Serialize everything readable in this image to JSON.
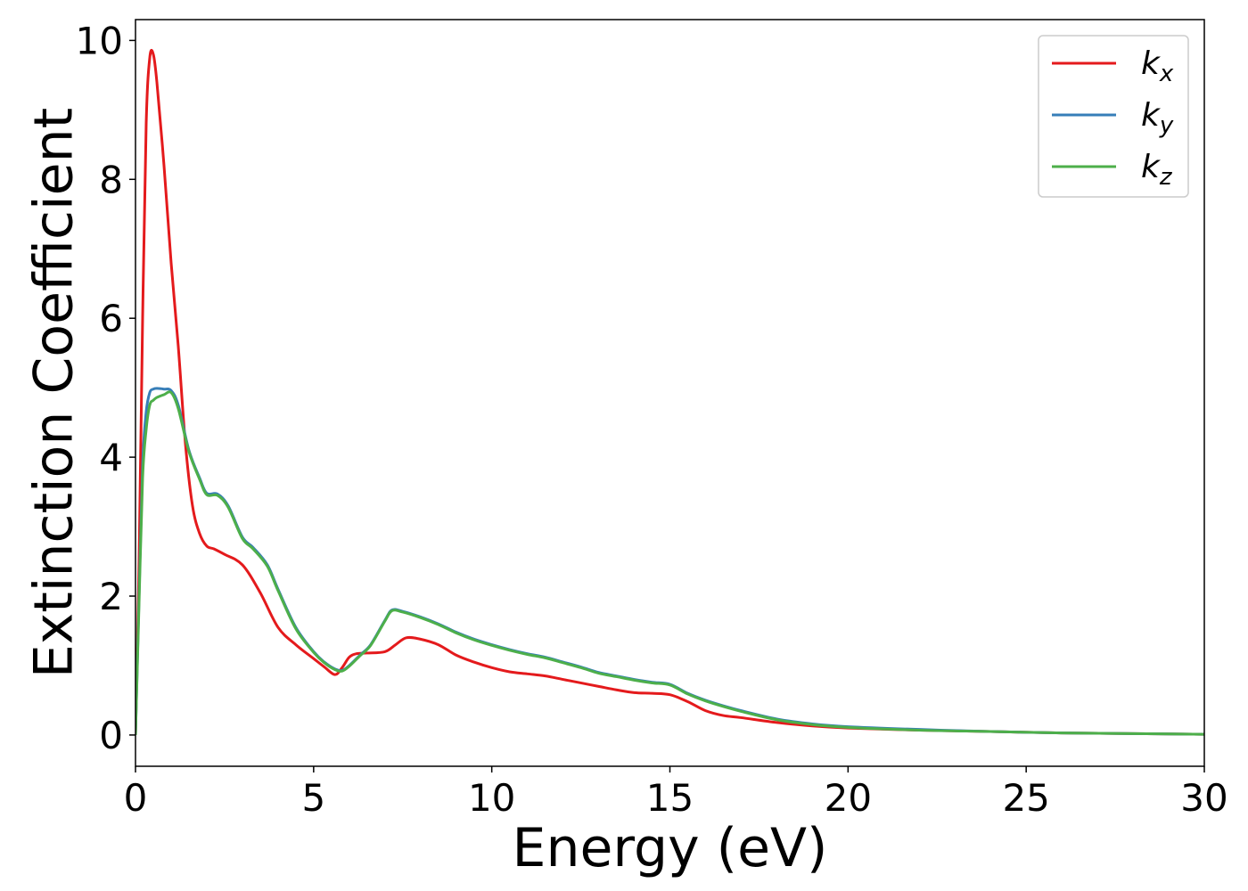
{
  "chart_data": {
    "type": "line",
    "title": "",
    "xlabel": "Energy (eV)",
    "ylabel": "Extinction Coefficient",
    "xlim": [
      0,
      30
    ],
    "ylim": [
      -0.45,
      10.3
    ],
    "xticks": [
      0,
      5,
      10,
      15,
      20,
      25,
      30
    ],
    "yticks": [
      0,
      2,
      4,
      6,
      8,
      10
    ],
    "xtick_labels": [
      "0",
      "5",
      "10",
      "15",
      "20",
      "25",
      "30"
    ],
    "ytick_labels": [
      "0",
      "2",
      "4",
      "6",
      "8",
      "10"
    ],
    "grid": false,
    "legend_position": "top-right",
    "series": [
      {
        "name": "k_x",
        "label_base": "k",
        "label_sub": "x",
        "color": "#e41a1c",
        "x": [
          0,
          0.1,
          0.2,
          0.3,
          0.4,
          0.5,
          0.6,
          0.8,
          1.0,
          1.2,
          1.4,
          1.6,
          1.8,
          2.0,
          2.2,
          2.5,
          3.0,
          3.5,
          4.0,
          4.5,
          5.0,
          5.3,
          5.6,
          5.8,
          6.0,
          6.2,
          6.5,
          7.0,
          7.3,
          7.6,
          8.0,
          8.5,
          9.0,
          9.5,
          10.0,
          10.5,
          11.0,
          11.5,
          12.0,
          12.5,
          13.0,
          13.5,
          14.0,
          14.5,
          15.0,
          15.5,
          16.0,
          16.5,
          17.0,
          18.0,
          19.0,
          20.0,
          22.0,
          24.0,
          26.0,
          28.0,
          30.0
        ],
        "y": [
          0,
          2.5,
          6.0,
          8.8,
          9.75,
          9.8,
          9.4,
          8.2,
          6.8,
          5.6,
          4.2,
          3.3,
          2.9,
          2.72,
          2.68,
          2.6,
          2.45,
          2.05,
          1.55,
          1.3,
          1.1,
          0.98,
          0.87,
          0.97,
          1.12,
          1.17,
          1.18,
          1.2,
          1.3,
          1.4,
          1.38,
          1.3,
          1.15,
          1.05,
          0.97,
          0.91,
          0.88,
          0.85,
          0.8,
          0.75,
          0.7,
          0.65,
          0.61,
          0.6,
          0.58,
          0.48,
          0.35,
          0.28,
          0.25,
          0.18,
          0.13,
          0.1,
          0.07,
          0.05,
          0.03,
          0.02,
          0.01
        ]
      },
      {
        "name": "k_y",
        "label_base": "k",
        "label_sub": "y",
        "color": "#377eb8",
        "x": [
          0,
          0.1,
          0.2,
          0.3,
          0.4,
          0.5,
          0.6,
          0.8,
          1.0,
          1.2,
          1.5,
          1.8,
          2.0,
          2.3,
          2.6,
          3.0,
          3.3,
          3.7,
          4.0,
          4.5,
          5.0,
          5.3,
          5.6,
          5.8,
          6.0,
          6.3,
          6.6,
          7.0,
          7.2,
          7.5,
          8.0,
          8.5,
          9.0,
          9.5,
          10.0,
          10.5,
          11.0,
          11.5,
          12.0,
          12.5,
          13.0,
          13.5,
          14.0,
          14.5,
          15.0,
          15.5,
          16.0,
          16.5,
          17.0,
          18.0,
          19.0,
          20.0,
          22.0,
          24.0,
          26.0,
          28.0,
          30.0
        ],
        "y": [
          0,
          2.0,
          3.9,
          4.65,
          4.93,
          4.98,
          4.99,
          4.98,
          4.96,
          4.75,
          4.1,
          3.7,
          3.48,
          3.47,
          3.3,
          2.85,
          2.7,
          2.45,
          2.1,
          1.55,
          1.2,
          1.05,
          0.95,
          0.93,
          1.0,
          1.15,
          1.3,
          1.65,
          1.8,
          1.78,
          1.7,
          1.6,
          1.48,
          1.38,
          1.3,
          1.23,
          1.17,
          1.12,
          1.05,
          0.98,
          0.9,
          0.85,
          0.8,
          0.76,
          0.73,
          0.6,
          0.5,
          0.42,
          0.35,
          0.23,
          0.16,
          0.12,
          0.08,
          0.05,
          0.03,
          0.02,
          0.01
        ]
      },
      {
        "name": "k_z",
        "label_base": "k",
        "label_sub": "z",
        "color": "#4daf4a",
        "x": [
          0,
          0.1,
          0.2,
          0.3,
          0.4,
          0.5,
          0.6,
          0.8,
          1.0,
          1.2,
          1.5,
          1.8,
          2.0,
          2.3,
          2.6,
          3.0,
          3.3,
          3.7,
          4.0,
          4.5,
          5.0,
          5.3,
          5.6,
          5.8,
          6.0,
          6.3,
          6.6,
          7.0,
          7.2,
          7.5,
          8.0,
          8.5,
          9.0,
          9.5,
          10.0,
          10.5,
          11.0,
          11.5,
          12.0,
          12.5,
          13.0,
          13.5,
          14.0,
          14.5,
          15.0,
          15.5,
          16.0,
          16.5,
          17.0,
          18.0,
          19.0,
          20.0,
          22.0,
          24.0,
          26.0,
          28.0,
          30.0
        ],
        "y": [
          0,
          1.9,
          3.7,
          4.4,
          4.75,
          4.82,
          4.86,
          4.9,
          4.93,
          4.7,
          4.08,
          3.68,
          3.46,
          3.45,
          3.28,
          2.83,
          2.68,
          2.43,
          2.08,
          1.53,
          1.19,
          1.04,
          0.94,
          0.92,
          0.99,
          1.14,
          1.29,
          1.64,
          1.79,
          1.77,
          1.69,
          1.59,
          1.47,
          1.37,
          1.29,
          1.22,
          1.16,
          1.11,
          1.04,
          0.97,
          0.89,
          0.84,
          0.79,
          0.75,
          0.72,
          0.59,
          0.49,
          0.41,
          0.34,
          0.22,
          0.15,
          0.11,
          0.07,
          0.05,
          0.03,
          0.02,
          0.01
        ]
      }
    ]
  }
}
